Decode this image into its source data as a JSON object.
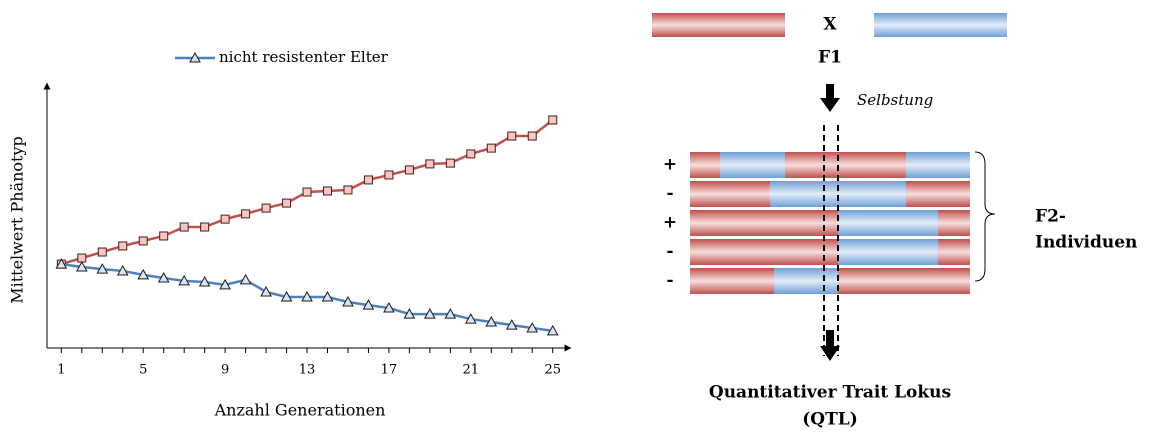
{
  "chart_data": {
    "type": "line",
    "x": [
      1,
      2,
      3,
      4,
      5,
      6,
      7,
      8,
      9,
      10,
      11,
      12,
      13,
      14,
      15,
      16,
      17,
      18,
      19,
      20,
      21,
      22,
      23,
      24,
      25
    ],
    "series": [
      {
        "color": "#c0504d",
        "marker": "square",
        "values": [
          31.9,
          34.2,
          36.5,
          38.8,
          40.7,
          42.6,
          46.0,
          46.0,
          49.0,
          51.0,
          53.2,
          55.1,
          59.3,
          59.7,
          60.1,
          63.9,
          65.8,
          67.7,
          70.0,
          70.3,
          73.8,
          76.0,
          80.6,
          80.6,
          86.7
        ]
      },
      {
        "name": "nicht resistenter Elter",
        "color": "#4f81bd",
        "marker": "triangle",
        "values": [
          31.9,
          30.8,
          30.0,
          29.3,
          27.8,
          26.6,
          25.5,
          25.1,
          24.0,
          25.9,
          21.3,
          19.4,
          19.4,
          19.4,
          17.5,
          16.3,
          15.2,
          12.9,
          12.9,
          12.9,
          11.0,
          9.9,
          8.7,
          7.6,
          6.5
        ]
      }
    ],
    "xlabel": "Anzahl Generationen",
    "ylabel": "Mittelwert Phänotyp",
    "xlim": [
      0.3,
      25.6
    ],
    "ylim": [
      0,
      100
    ],
    "xticks": [
      1,
      5,
      9,
      13,
      17,
      21,
      25
    ],
    "xminorticks": [
      1,
      2,
      3,
      4,
      5,
      6,
      7,
      8,
      9,
      10,
      11,
      12,
      13,
      14,
      15,
      16,
      17,
      18,
      19,
      20,
      21,
      22,
      23,
      24,
      25
    ],
    "legend": "top"
  },
  "diagram": {
    "cross": "X",
    "f1": "F1",
    "step": "Selbstung",
    "signs": [
      "+",
      "-",
      "+",
      "-",
      "-"
    ],
    "group": [
      "F2-",
      "Individuen"
    ],
    "result": [
      "Quantitativer Trait Lokus",
      "(QTL)"
    ]
  }
}
